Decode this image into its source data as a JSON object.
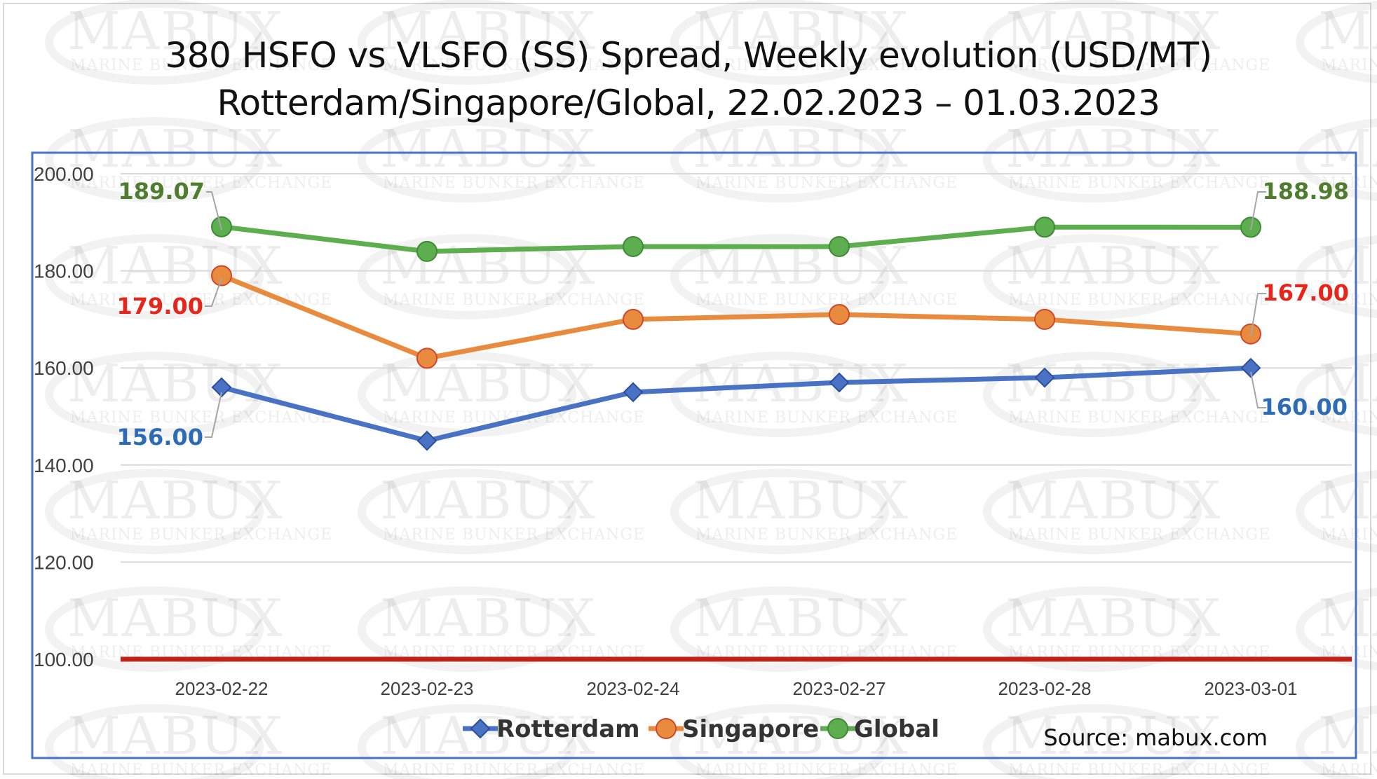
{
  "title_lines": [
    "380 HSFO vs VLSFO (SS) Spread, Weekly evolution (USD/MT)",
    "Rotterdam/Singapore/Global, 22.02.2023 – 01.03.2023"
  ],
  "watermark": {
    "brand": "MABUX",
    "tagline": "MARINE BUNKER EXCHANGE"
  },
  "source_note": "Source: mabux.com",
  "chart_data": {
    "type": "line",
    "categories": [
      "2023-02-22",
      "2023-02-23",
      "2023-02-24",
      "2023-02-27",
      "2023-02-28",
      "2023-03-01"
    ],
    "ylim": [
      100,
      200
    ],
    "yticks": [
      100,
      120,
      140,
      160,
      180,
      200
    ],
    "ytick_labels": [
      "100.00",
      "120.00",
      "140.00",
      "160.00",
      "180.00",
      "200.00"
    ],
    "grid": true,
    "legend": "bottom-center",
    "reference_line": {
      "value": 100,
      "color": "#c0231a"
    },
    "series": [
      {
        "name": "Rotterdam",
        "values": [
          156.0,
          145.0,
          155.0,
          157.0,
          158.0,
          160.0
        ],
        "marker": "diamond",
        "color": "#4a72c4",
        "label_color": "#2e6bb6",
        "first_label": "156.00",
        "last_label": "160.00"
      },
      {
        "name": "Singapore",
        "values": [
          179.0,
          162.0,
          170.0,
          171.0,
          170.0,
          167.0
        ],
        "marker": "circle",
        "color": "#e98b3e",
        "label_color": "#e8251a",
        "first_label": "179.00",
        "last_label": "167.00"
      },
      {
        "name": "Global",
        "values": [
          189.07,
          184.0,
          185.0,
          185.0,
          189.0,
          188.98
        ],
        "marker": "circle",
        "color": "#5cae4e",
        "label_color": "#4f7d2e",
        "first_label": "189.07",
        "last_label": "188.98"
      }
    ]
  }
}
